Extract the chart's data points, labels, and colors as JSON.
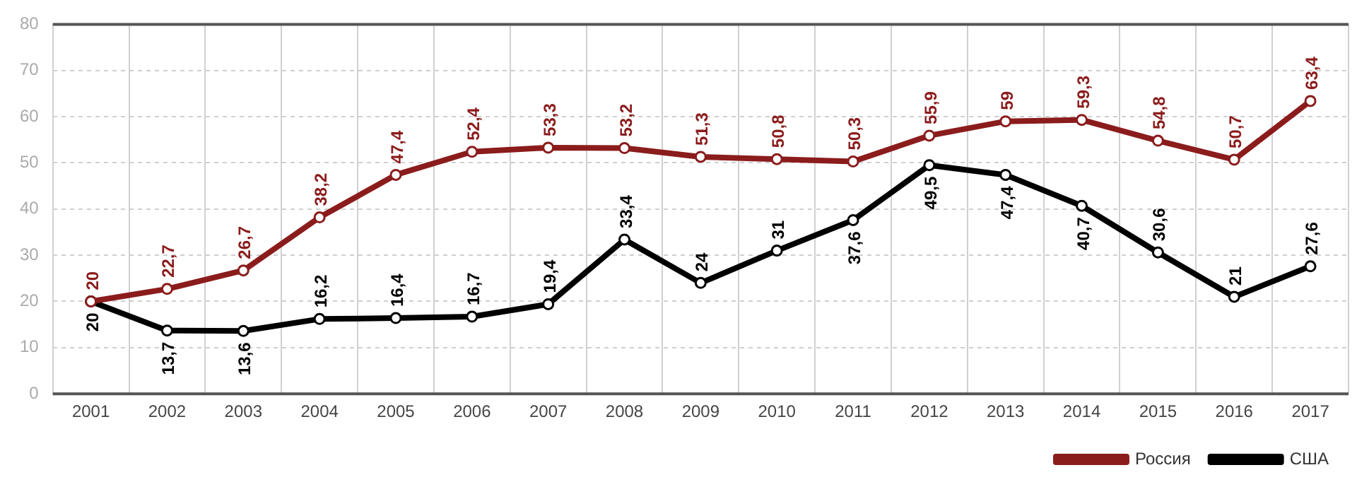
{
  "chart_data": {
    "type": "line",
    "categories": [
      "2001",
      "2002",
      "2003",
      "2004",
      "2005",
      "2006",
      "2007",
      "2008",
      "2009",
      "2010",
      "2011",
      "2012",
      "2013",
      "2014",
      "2015",
      "2016",
      "2017"
    ],
    "ylim": [
      0,
      80
    ],
    "yticks": [
      0,
      10,
      20,
      30,
      40,
      50,
      60,
      70,
      80
    ],
    "grid": true,
    "legend": "bottom right",
    "marker": "circle",
    "line_style": "solid",
    "series": [
      {
        "name": "Россия",
        "color": "#8b1c1c",
        "values": [
          20,
          22.7,
          26.7,
          38.2,
          47.4,
          52.4,
          53.3,
          53.2,
          51.3,
          50.8,
          50.3,
          55.9,
          59,
          59.3,
          54.8,
          50.7,
          63.4
        ],
        "value_labels": [
          "20",
          "22,7",
          "26,7",
          "38,2",
          "47,4",
          "52,4",
          "53,3",
          "53,2",
          "51,3",
          "50,8",
          "50,3",
          "55,9",
          "59",
          "59,3",
          "54,8",
          "50,7",
          "63,4"
        ]
      },
      {
        "name": "США",
        "color": "#000000",
        "values": [
          20,
          13.7,
          13.6,
          16.2,
          16.4,
          16.7,
          19.4,
          33.4,
          24,
          31,
          37.6,
          49.5,
          47.4,
          40.7,
          30.6,
          21,
          27.6
        ],
        "value_labels": [
          "20",
          "13,7",
          "13,6",
          "16,2",
          "16,4",
          "16,7",
          "19,4",
          "33,4",
          "24",
          "31",
          "37,6",
          "49,5",
          "47,4",
          "40,7",
          "30,6",
          "21",
          "27,6"
        ]
      }
    ]
  }
}
